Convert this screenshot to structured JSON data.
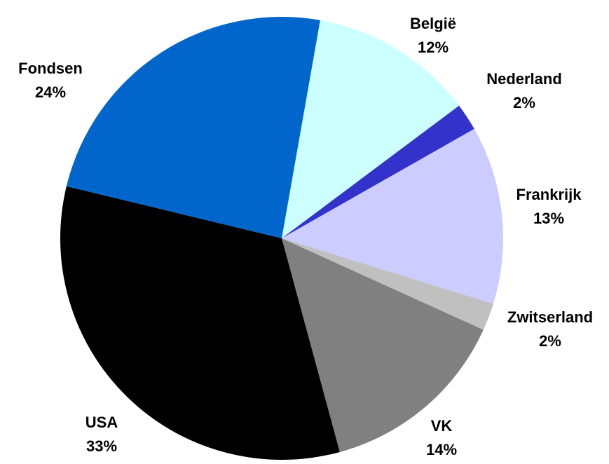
{
  "chart_data": {
    "type": "pie",
    "categories": [
      "België",
      "Nederland",
      "Frankrijk",
      "Zwitserland",
      "VK",
      "USA",
      "Fondsen"
    ],
    "values": [
      12,
      2,
      13,
      2,
      14,
      33,
      24
    ],
    "value_labels": [
      "12%",
      "2%",
      "13%",
      "2%",
      "14%",
      "33%",
      "24%"
    ],
    "colors": [
      "#ccffff",
      "#3333cc",
      "#ccccff",
      "#c0c0c0",
      "#808080",
      "#000000",
      "#0066cc"
    ]
  }
}
